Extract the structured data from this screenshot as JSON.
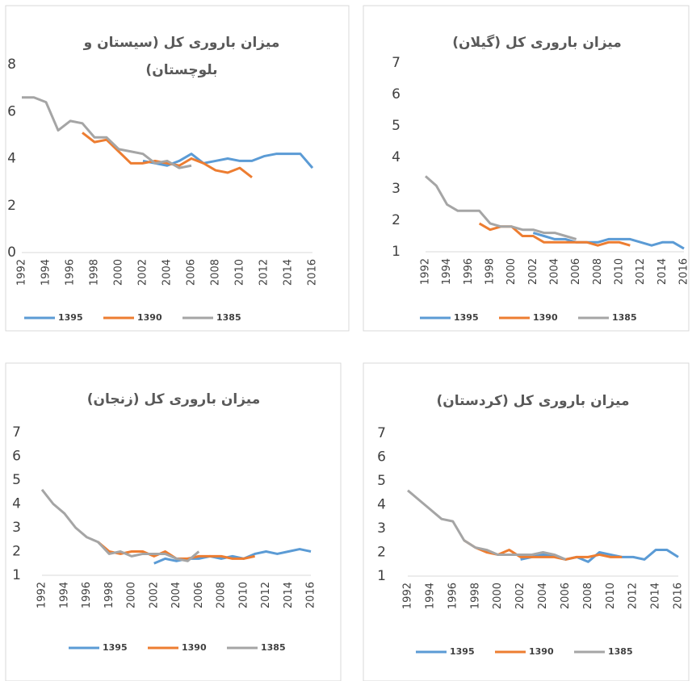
{
  "chart_data": [
    {
      "type": "line",
      "title": "میزان باروری کل (سیستان و بلوچستان)",
      "x": [
        1992,
        1993,
        1994,
        1995,
        1996,
        1997,
        1998,
        1999,
        2000,
        2001,
        2002,
        2003,
        2004,
        2005,
        2006,
        2007,
        2008,
        2009,
        2010,
        2011,
        2012,
        2013,
        2014,
        2015,
        2016
      ],
      "xlim": [
        1992,
        2016
      ],
      "xticks": [
        1992,
        1994,
        1996,
        1998,
        2000,
        2002,
        2004,
        2006,
        2008,
        2010,
        2012,
        2014,
        2016
      ],
      "ylim": [
        0,
        8
      ],
      "yticks": [
        0,
        2,
        4,
        6,
        8
      ],
      "legend": "bottom",
      "series": [
        {
          "name": "1395",
          "color": "#5b9bd5",
          "values": [
            null,
            null,
            null,
            null,
            null,
            null,
            null,
            null,
            null,
            null,
            3.9,
            3.8,
            3.7,
            3.9,
            4.2,
            3.8,
            3.9,
            4.0,
            3.9,
            3.9,
            4.1,
            4.2,
            4.2,
            4.2,
            3.6
          ]
        },
        {
          "name": "1390",
          "color": "#ed7d31",
          "values": [
            null,
            null,
            null,
            null,
            null,
            5.1,
            4.7,
            4.8,
            4.3,
            3.8,
            3.8,
            3.9,
            3.8,
            3.7,
            4.0,
            3.8,
            3.5,
            3.4,
            3.6,
            3.2,
            null,
            null,
            null,
            null,
            null
          ]
        },
        {
          "name": "1385",
          "color": "#a5a5a5",
          "values": [
            6.6,
            6.6,
            6.4,
            5.2,
            5.6,
            5.5,
            4.9,
            4.9,
            4.4,
            4.3,
            4.2,
            3.8,
            3.9,
            3.6,
            3.7,
            null,
            null,
            null,
            null,
            null,
            null,
            null,
            null,
            null,
            null
          ]
        }
      ]
    },
    {
      "type": "line",
      "title": "میزان باروری کل (گیلان)",
      "x": [
        1992,
        1993,
        1994,
        1995,
        1996,
        1997,
        1998,
        1999,
        2000,
        2001,
        2002,
        2003,
        2004,
        2005,
        2006,
        2007,
        2008,
        2009,
        2010,
        2011,
        2012,
        2013,
        2014,
        2015,
        2016
      ],
      "xlim": [
        1992,
        2016
      ],
      "xticks": [
        1992,
        1994,
        1996,
        1998,
        2000,
        2002,
        2004,
        2006,
        2008,
        2010,
        2012,
        2014,
        2016
      ],
      "ylim": [
        1,
        7
      ],
      "yticks": [
        1,
        2,
        3,
        4,
        5,
        6,
        7
      ],
      "legend": "bottom",
      "series": [
        {
          "name": "1395",
          "color": "#5b9bd5",
          "values": [
            null,
            null,
            null,
            null,
            null,
            null,
            null,
            null,
            null,
            null,
            1.6,
            1.5,
            1.4,
            1.4,
            1.3,
            1.3,
            1.3,
            1.4,
            1.4,
            1.4,
            1.3,
            1.2,
            1.3,
            1.3,
            1.1
          ]
        },
        {
          "name": "1390",
          "color": "#ed7d31",
          "values": [
            null,
            null,
            null,
            null,
            null,
            1.9,
            1.7,
            1.8,
            1.8,
            1.5,
            1.5,
            1.3,
            1.3,
            1.3,
            1.3,
            1.3,
            1.2,
            1.3,
            1.3,
            1.2,
            null,
            null,
            null,
            null,
            null
          ]
        },
        {
          "name": "1385",
          "color": "#a5a5a5",
          "values": [
            3.4,
            3.1,
            2.5,
            2.3,
            2.3,
            2.3,
            1.9,
            1.8,
            1.8,
            1.7,
            1.7,
            1.6,
            1.6,
            1.5,
            1.4,
            null,
            null,
            null,
            null,
            null,
            null,
            null,
            null,
            null,
            null
          ]
        }
      ]
    },
    {
      "type": "line",
      "title": "میزان باروری کل (زنجان)",
      "x": [
        1992,
        1993,
        1994,
        1995,
        1996,
        1997,
        1998,
        1999,
        2000,
        2001,
        2002,
        2003,
        2004,
        2005,
        2006,
        2007,
        2008,
        2009,
        2010,
        2011,
        2012,
        2013,
        2014,
        2015,
        2016
      ],
      "xlim": [
        1992,
        2016
      ],
      "xticks": [
        1992,
        1994,
        1996,
        1998,
        2000,
        2002,
        2004,
        2006,
        2008,
        2010,
        2012,
        2014,
        2016
      ],
      "ylim": [
        1,
        7
      ],
      "yticks": [
        1,
        2,
        3,
        4,
        5,
        6,
        7
      ],
      "legend": "bottom",
      "series": [
        {
          "name": "1395",
          "color": "#5b9bd5",
          "values": [
            null,
            null,
            null,
            null,
            null,
            null,
            null,
            null,
            null,
            null,
            1.5,
            1.7,
            1.6,
            1.7,
            1.7,
            1.8,
            1.7,
            1.8,
            1.7,
            1.9,
            2.0,
            1.9,
            2.0,
            2.1,
            2.0
          ]
        },
        {
          "name": "1390",
          "color": "#ed7d31",
          "values": [
            null,
            null,
            null,
            null,
            null,
            2.4,
            2.0,
            1.9,
            2.0,
            2.0,
            1.8,
            2.0,
            1.7,
            1.7,
            1.8,
            1.8,
            1.8,
            1.7,
            1.7,
            1.8,
            null,
            null,
            null,
            null,
            null
          ]
        },
        {
          "name": "1385",
          "color": "#a5a5a5",
          "values": [
            4.6,
            4.0,
            3.6,
            3.0,
            2.6,
            2.4,
            1.9,
            2.0,
            1.8,
            1.9,
            1.9,
            1.9,
            1.7,
            1.6,
            2.0,
            null,
            null,
            null,
            null,
            null,
            null,
            null,
            null,
            null,
            null
          ]
        }
      ]
    },
    {
      "type": "line",
      "title": "میزان باروری کل (کردستان)",
      "x": [
        1992,
        1993,
        1994,
        1995,
        1996,
        1997,
        1998,
        1999,
        2000,
        2001,
        2002,
        2003,
        2004,
        2005,
        2006,
        2007,
        2008,
        2009,
        2010,
        2011,
        2012,
        2013,
        2014,
        2015,
        2016
      ],
      "xlim": [
        1992,
        2016
      ],
      "xticks": [
        1992,
        1994,
        1996,
        1998,
        2000,
        2002,
        2004,
        2006,
        2008,
        2010,
        2012,
        2014,
        2016
      ],
      "ylim": [
        1,
        7
      ],
      "yticks": [
        1,
        2,
        3,
        4,
        5,
        6,
        7
      ],
      "legend": "bottom",
      "series": [
        {
          "name": "1395",
          "color": "#5b9bd5",
          "values": [
            null,
            null,
            null,
            null,
            null,
            null,
            null,
            null,
            null,
            null,
            1.7,
            1.8,
            1.9,
            1.9,
            1.7,
            1.8,
            1.6,
            2.0,
            1.9,
            1.8,
            1.8,
            1.7,
            2.1,
            2.1,
            1.8
          ]
        },
        {
          "name": "1390",
          "color": "#ed7d31",
          "values": [
            null,
            null,
            null,
            null,
            null,
            2.5,
            2.2,
            2.0,
            1.9,
            2.1,
            1.8,
            1.8,
            1.8,
            1.8,
            1.7,
            1.8,
            1.8,
            1.9,
            1.8,
            1.8,
            null,
            null,
            null,
            null,
            null
          ]
        },
        {
          "name": "1385",
          "color": "#a5a5a5",
          "values": [
            4.6,
            4.2,
            3.8,
            3.4,
            3.3,
            2.5,
            2.2,
            2.1,
            1.9,
            1.9,
            1.9,
            1.9,
            2.0,
            1.9,
            1.7,
            null,
            null,
            null,
            null,
            null,
            null,
            null,
            null,
            null,
            null
          ]
        }
      ]
    }
  ]
}
